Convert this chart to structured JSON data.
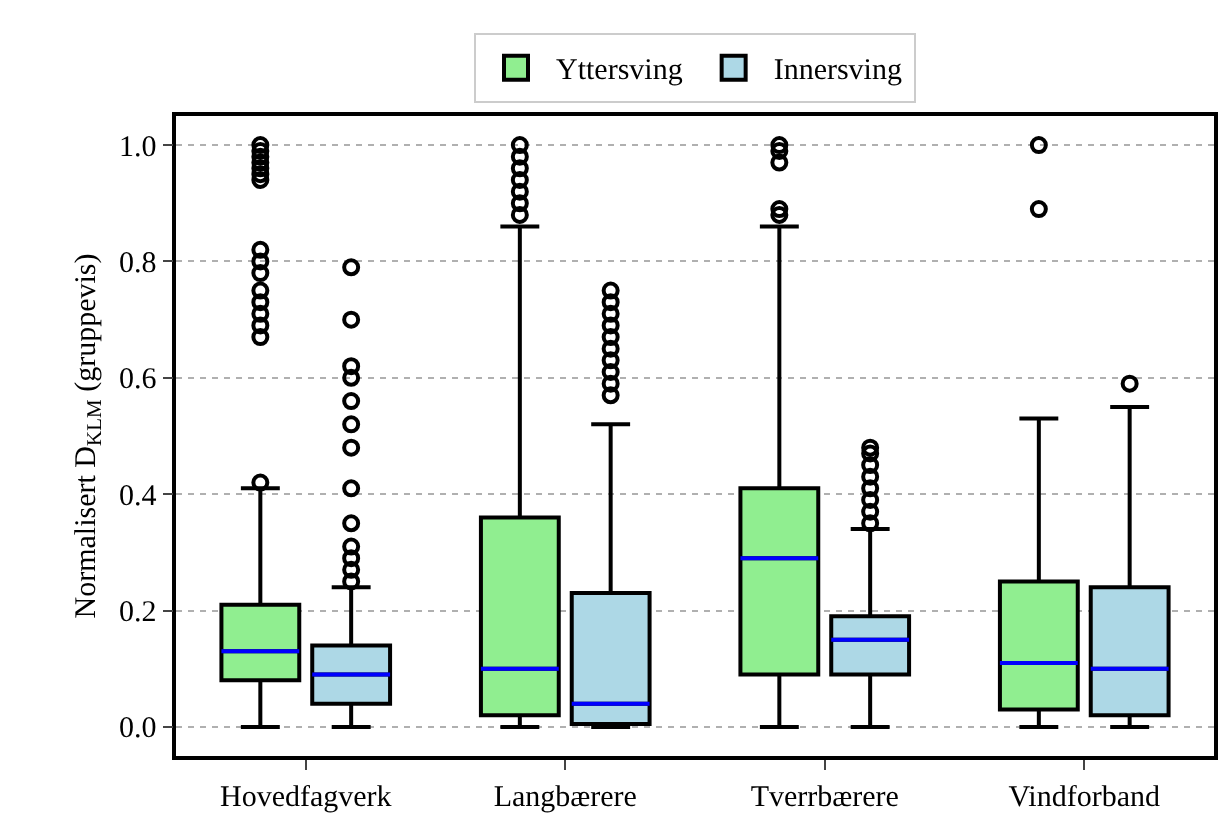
{
  "chart_data": {
    "type": "box",
    "ylabel": "Normalisert D$_{KLM}$ (gruppevis)",
    "categories": [
      "Hovedfagverk",
      "Langbærere",
      "Tverrbærere",
      "Vindforband"
    ],
    "ylim": [
      -0.05,
      1.05
    ],
    "yticks": [
      {
        "value": 0,
        "label": "0.0"
      },
      0.2,
      0.4,
      0.6,
      0.8,
      {
        "value": 1,
        "label": "1.0"
      }
    ],
    "grid": "y",
    "legend": "top",
    "marker": "circle",
    "series": [
      {
        "name": "Yttersving",
        "color": "#90ee90",
        "boxes": [
          {
            "low": 0,
            "q1": 0.08,
            "median": 0.13,
            "q3": 0.21,
            "high": 0.41,
            "outliers": [
              0.42,
              0.67,
              0.69,
              0.71,
              0.73,
              0.75,
              0.78,
              0.8,
              0.82,
              0.94,
              0.95,
              0.96,
              0.97,
              0.98,
              0.99,
              1.0
            ]
          },
          {
            "low": 0,
            "q1": 0.02,
            "median": 0.1,
            "q3": 0.36,
            "high": 0.86,
            "outliers": [
              0.88,
              0.9,
              0.92,
              0.94,
              0.96,
              0.98,
              1.0
            ]
          },
          {
            "low": 0,
            "q1": 0.09,
            "median": 0.29,
            "q3": 0.41,
            "high": 0.86,
            "outliers": [
              0.88,
              0.89,
              0.97,
              0.99,
              1.0
            ]
          },
          {
            "low": 0,
            "q1": 0.03,
            "median": 0.11,
            "q3": 0.25,
            "high": 0.53,
            "outliers": [
              0.89,
              1.0
            ]
          }
        ]
      },
      {
        "name": "Innersving",
        "color": "#add8e6",
        "boxes": [
          {
            "low": 0,
            "q1": 0.04,
            "median": 0.09,
            "q3": 0.14,
            "high": 0.24,
            "outliers": [
              0.25,
              0.27,
              0.29,
              0.31,
              0.35,
              0.41,
              0.48,
              0.52,
              0.56,
              0.6,
              0.62,
              0.7,
              0.79
            ]
          },
          {
            "low": 0,
            "q1": 0.005,
            "median": 0.04,
            "q3": 0.23,
            "high": 0.52,
            "outliers": [
              0.57,
              0.59,
              0.61,
              0.63,
              0.65,
              0.67,
              0.69,
              0.71,
              0.73,
              0.75
            ]
          },
          {
            "low": 0,
            "q1": 0.09,
            "median": 0.15,
            "q3": 0.19,
            "high": 0.34,
            "outliers": [
              0.35,
              0.37,
              0.39,
              0.41,
              0.43,
              0.45,
              0.47,
              0.48
            ]
          },
          {
            "low": 0,
            "q1": 0.02,
            "median": 0.1,
            "q3": 0.24,
            "high": 0.55,
            "outliers": [
              0.59
            ]
          }
        ]
      }
    ]
  }
}
